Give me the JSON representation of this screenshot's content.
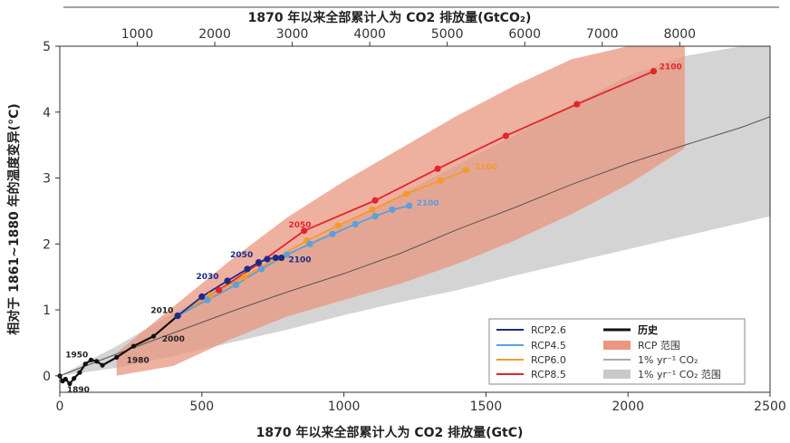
{
  "chart_data": {
    "type": "line",
    "xlabel": "1870 年以来全部累计人为 CO2 排放量(GtC)",
    "x2label": "1870 年以来全部累计人为 CO2 排放量(GtCO₂)",
    "ylabel": "相对于 1861~1880 年的温度变异(°C)",
    "xlim": [
      0,
      2500
    ],
    "ylim": [
      -0.25,
      5
    ],
    "x2lim": [
      0,
      9166
    ],
    "xticks": [
      0,
      500,
      1000,
      1500,
      2000,
      2500
    ],
    "yticks": [
      0,
      1,
      2,
      3,
      4,
      5
    ],
    "x2ticks": [
      1000,
      2000,
      3000,
      4000,
      5000,
      6000,
      7000,
      8000
    ],
    "grid": false,
    "legend": "bottom-right",
    "colors": {
      "rcp26": "#1a2b8c",
      "rcp45": "#5aa0dc",
      "rcp60": "#f39a2b",
      "rcp85": "#e3262b",
      "history": "#111111",
      "rcp_range": "#e9977f",
      "pct1": "#555555",
      "pct1_range": "#c9c9c9"
    },
    "series": [
      {
        "key": "history",
        "name": "历史",
        "x": [
          0,
          10,
          20,
          35,
          50,
          70,
          90,
          110,
          130,
          150,
          200,
          260,
          330,
          415
        ],
        "y": [
          0.0,
          -0.08,
          -0.05,
          -0.12,
          -0.04,
          0.05,
          0.18,
          0.24,
          0.22,
          0.16,
          0.28,
          0.45,
          0.6,
          0.91
        ],
        "labels": [
          {
            "text": "1950",
            "x": 20,
            "y": 0.28
          },
          {
            "text": "1890",
            "x": 25,
            "y": -0.25
          },
          {
            "text": "1980",
            "x": 235,
            "y": 0.2
          },
          {
            "text": "2000",
            "x": 360,
            "y": 0.52
          },
          {
            "text": "2010",
            "x": 320,
            "y": 0.95
          }
        ]
      },
      {
        "key": "rcp26",
        "name": "RCP2.6",
        "x": [
          415,
          500,
          590,
          660,
          700,
          730,
          760,
          780
        ],
        "y": [
          0.91,
          1.2,
          1.44,
          1.62,
          1.72,
          1.77,
          1.79,
          1.79
        ],
        "labels": [
          {
            "text": "2030",
            "x": 480,
            "y": 1.47
          },
          {
            "text": "2050",
            "x": 600,
            "y": 1.8
          },
          {
            "text": "2100",
            "x": 805,
            "y": 1.72
          }
        ]
      },
      {
        "key": "rcp45",
        "name": "RCP4.5",
        "x": [
          415,
          520,
          620,
          710,
          800,
          880,
          960,
          1040,
          1110,
          1170,
          1230
        ],
        "y": [
          0.91,
          1.15,
          1.38,
          1.62,
          1.84,
          2.0,
          2.15,
          2.3,
          2.42,
          2.52,
          2.58
        ],
        "labels": [
          {
            "text": "2100",
            "x": 1255,
            "y": 2.58
          }
        ]
      },
      {
        "key": "rcp60",
        "name": "RCP6.0",
        "x": [
          415,
          530,
          650,
          760,
          870,
          980,
          1100,
          1220,
          1340,
          1430
        ],
        "y": [
          0.91,
          1.22,
          1.5,
          1.78,
          2.05,
          2.28,
          2.52,
          2.76,
          2.96,
          3.12
        ],
        "labels": [
          {
            "text": "2100",
            "x": 1460,
            "y": 3.13
          }
        ]
      },
      {
        "key": "rcp85",
        "name": "RCP8.5",
        "x": [
          415,
          560,
          700,
          860,
          1110,
          1330,
          1570,
          1820,
          2090
        ],
        "y": [
          0.91,
          1.3,
          1.7,
          2.2,
          2.66,
          3.14,
          3.64,
          4.12,
          4.62
        ],
        "labels": [
          {
            "text": "2050",
            "x": 805,
            "y": 2.25
          },
          {
            "text": "2100",
            "x": 2110,
            "y": 4.65
          }
        ]
      },
      {
        "key": "pct1",
        "name": "1% yr⁻¹ CO₂",
        "x": [
          0,
          200,
          400,
          600,
          800,
          1000,
          1200,
          1400,
          1600,
          1800,
          2000,
          2200,
          2400,
          2500
        ],
        "y": [
          0.0,
          0.33,
          0.65,
          0.97,
          1.27,
          1.55,
          1.86,
          2.22,
          2.55,
          2.9,
          3.22,
          3.5,
          3.77,
          3.93
        ]
      }
    ],
    "ranges": [
      {
        "key": "rcp_range",
        "name": "RCP 范围",
        "x": [
          200,
          400,
          600,
          800,
          1000,
          1200,
          1400,
          1600,
          1800,
          2000,
          2200
        ],
        "upper": [
          0.35,
          1.05,
          1.75,
          2.4,
          2.95,
          3.45,
          3.95,
          4.4,
          4.8,
          5.0,
          5.0
        ],
        "lower": [
          0.0,
          0.15,
          0.55,
          0.9,
          1.15,
          1.4,
          1.7,
          2.05,
          2.45,
          2.9,
          3.45
        ]
      },
      {
        "key": "pct1_range",
        "name": "1% yr⁻¹ CO₂ 范围",
        "x": [
          0,
          200,
          400,
          600,
          800,
          1000,
          1200,
          1400,
          1600,
          1800,
          2000,
          2200,
          2400,
          2500
        ],
        "upper": [
          0.0,
          0.45,
          0.95,
          1.42,
          1.85,
          2.3,
          2.75,
          3.2,
          3.65,
          4.1,
          4.55,
          4.85,
          5.0,
          5.0
        ],
        "lower": [
          0.0,
          0.12,
          0.3,
          0.5,
          0.7,
          0.92,
          1.12,
          1.3,
          1.52,
          1.72,
          1.92,
          2.12,
          2.32,
          2.42
        ]
      }
    ],
    "legend_entries": [
      {
        "label": "RCP2.6",
        "key": "rcp26",
        "kind": "line"
      },
      {
        "label": "RCP4.5",
        "key": "rcp45",
        "kind": "line"
      },
      {
        "label": "RCP6.0",
        "key": "rcp60",
        "kind": "line"
      },
      {
        "label": "RCP8.5",
        "key": "rcp85",
        "kind": "line"
      },
      {
        "label": "历史",
        "key": "history",
        "kind": "line-bold"
      },
      {
        "label": "RCP 范围",
        "key": "rcp_range",
        "kind": "patch"
      },
      {
        "label": "1% yr⁻¹ CO₂",
        "key": "pct1",
        "kind": "line-thin"
      },
      {
        "label": "1% yr⁻¹ CO₂ 范围",
        "key": "pct1_range",
        "kind": "patch"
      }
    ]
  }
}
